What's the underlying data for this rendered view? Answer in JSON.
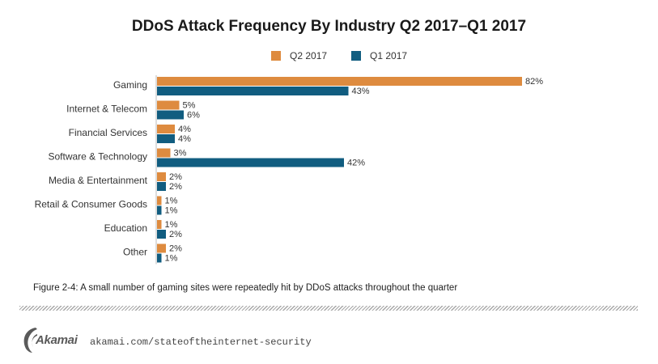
{
  "chart_data": {
    "type": "bar",
    "orientation": "horizontal",
    "title": "DDoS Attack Frequency By Industry Q2 2017–Q1 2017",
    "categories": [
      "Gaming",
      "Internet & Telecom",
      "Financial Services",
      "Software & Technology",
      "Media & Entertainment",
      "Retail & Consumer Goods",
      "Education",
      "Other"
    ],
    "series": [
      {
        "name": "Q2 2017",
        "color": "#DE8B3F",
        "values": [
          82,
          5,
          4,
          3,
          2,
          1,
          1,
          2
        ]
      },
      {
        "name": "Q1 2017",
        "color": "#115D80",
        "values": [
          43,
          6,
          4,
          42,
          2,
          1,
          2,
          1
        ]
      }
    ],
    "value_suffix": "%",
    "xlim": [
      0,
      100
    ],
    "grid": false,
    "legend_position": "top-center"
  },
  "caption": "Figure 2-4:  A small number of gaming sites were repeatedly hit by DDoS attacks throughout the quarter",
  "footer": {
    "logo": "Akamai",
    "url": "akamai.com/stateoftheinternet-security"
  }
}
